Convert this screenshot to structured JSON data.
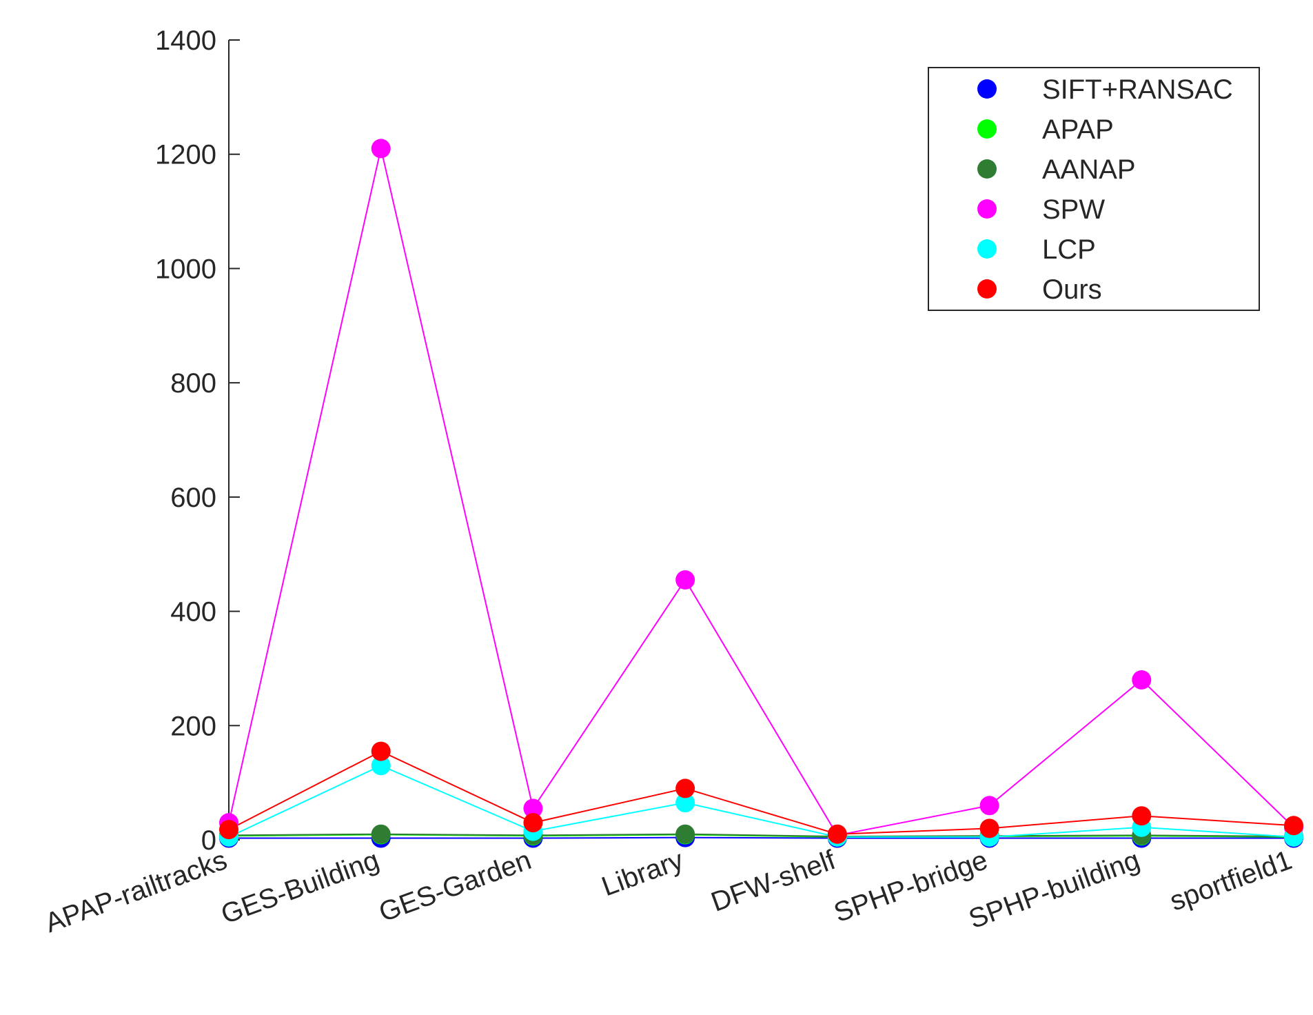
{
  "chart_data": {
    "type": "line",
    "title": "",
    "xlabel": "",
    "ylabel": "",
    "categories": [
      "APAP-railtracks",
      "GES-Building",
      "GES-Garden",
      "Library",
      "DFW-shelf",
      "SPHP-bridge",
      "SPHP-building",
      "sportfield1"
    ],
    "ylim": [
      0,
      1400
    ],
    "yticks": [
      0,
      200,
      400,
      600,
      800,
      1000,
      1200,
      1400
    ],
    "grid": false,
    "legend_position": "top-right",
    "series": [
      {
        "name": "SIFT+RANSAC",
        "color": "#0000ff",
        "values": [
          3,
          3,
          3,
          4,
          3,
          3,
          3,
          3
        ]
      },
      {
        "name": "APAP",
        "color": "#00ff00",
        "values": [
          7,
          9,
          7,
          9,
          5,
          6,
          7,
          5
        ]
      },
      {
        "name": "AANAP",
        "color": "#2e7d32",
        "values": [
          8,
          10,
          8,
          10,
          6,
          7,
          8,
          6
        ]
      },
      {
        "name": "SPW",
        "color": "#ff00ff",
        "values": [
          30,
          1210,
          55,
          455,
          8,
          60,
          280,
          22
        ]
      },
      {
        "name": "LCP",
        "color": "#00ffff",
        "values": [
          5,
          130,
          15,
          65,
          5,
          5,
          22,
          5
        ]
      },
      {
        "name": "Ours",
        "color": "#ff0000",
        "values": [
          18,
          155,
          30,
          90,
          10,
          20,
          42,
          25
        ]
      }
    ]
  }
}
